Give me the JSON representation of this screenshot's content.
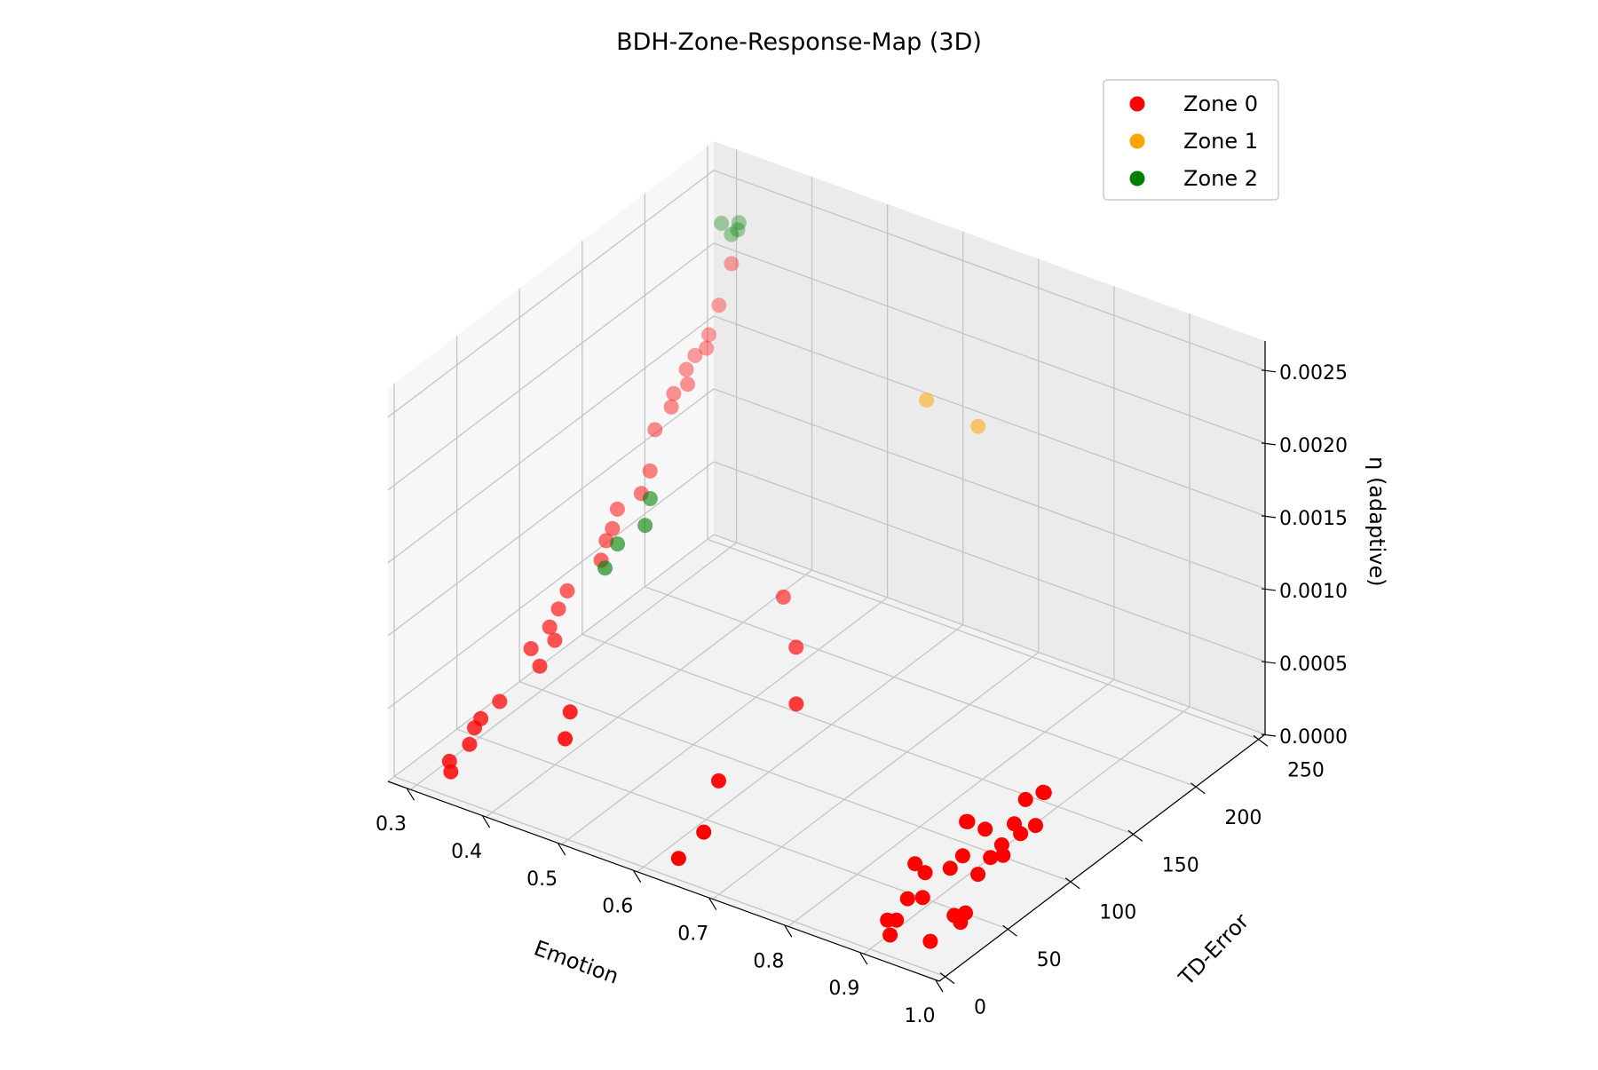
{
  "chart_data": {
    "type": "scatter",
    "title": "BDH-Zone-Response-Map (3D)",
    "xlabel": "Emotion",
    "ylabel": "TD-Error",
    "zlabel": "η (adaptive)",
    "xlim": [
      0.27,
      1.0
    ],
    "ylim": [
      -5,
      255
    ],
    "zlim": [
      0,
      0.0027
    ],
    "xticks": [
      "0.3",
      "0.4",
      "0.5",
      "0.6",
      "0.7",
      "0.8",
      "0.9",
      "1.0"
    ],
    "yticks": [
      "0",
      "50",
      "100",
      "150",
      "200",
      "250"
    ],
    "zticks": [
      "0.0000",
      "0.0005",
      "0.0010",
      "0.0015",
      "0.0020",
      "0.0025"
    ],
    "grid": true,
    "legend_position": "top-right",
    "series": [
      {
        "name": "Zone 0",
        "color": "#ff0000",
        "points": [
          [
            0.31,
            245,
            0.002
          ],
          [
            0.305,
            238,
            0.00175
          ],
          [
            0.305,
            230,
            0.0016
          ],
          [
            0.31,
            225,
            0.00155
          ],
          [
            0.3,
            222,
            0.0015
          ],
          [
            0.3,
            215,
            0.00145
          ],
          [
            0.31,
            210,
            0.0014
          ],
          [
            0.3,
            205,
            0.00135
          ],
          [
            0.305,
            200,
            0.0013
          ],
          [
            0.3,
            190,
            0.0012
          ],
          [
            0.31,
            180,
            0.001
          ],
          [
            0.315,
            170,
            0.00092
          ],
          [
            0.3,
            160,
            0.00085
          ],
          [
            0.31,
            150,
            0.0008
          ],
          [
            0.31,
            145,
            0.00075
          ],
          [
            0.32,
            135,
            0.0007
          ],
          [
            0.3,
            120,
            0.00055
          ],
          [
            0.305,
            110,
            0.0005
          ],
          [
            0.31,
            100,
            0.00045
          ],
          [
            0.325,
            95,
            0.00042
          ],
          [
            0.31,
            85,
            0.0004
          ],
          [
            0.33,
            80,
            0.00035
          ],
          [
            0.31,
            60,
            0.0002
          ],
          [
            0.31,
            45,
            0.00018
          ],
          [
            0.31,
            40,
            0.00015
          ],
          [
            0.32,
            30,
            0.00012
          ],
          [
            0.31,
            20,
            5e-05
          ],
          [
            0.32,
            15,
            3e-05
          ],
          [
            0.47,
            190,
            0.00037
          ],
          [
            0.52,
            170,
            0.00025
          ],
          [
            0.57,
            140,
            0.00015
          ],
          [
            0.6,
            60,
            0.0002
          ],
          [
            0.42,
            50,
            0.0004
          ],
          [
            0.43,
            40,
            0.0003
          ],
          [
            0.63,
            30,
            0.0001
          ],
          [
            0.63,
            10,
            5e-05
          ],
          [
            0.87,
            110,
            5e-05
          ],
          [
            0.87,
            95,
            0.0002
          ],
          [
            0.88,
            90,
            0.00025
          ],
          [
            0.89,
            80,
            0.0001
          ],
          [
            0.89,
            70,
            8e-05
          ],
          [
            0.86,
            60,
            0.00012
          ],
          [
            0.89,
            50,
            0.00018
          ],
          [
            0.9,
            42,
            8e-05
          ],
          [
            0.9,
            30,
            0.00015
          ],
          [
            0.89,
            20,
            5e-05
          ],
          [
            0.91,
            15,
            0.00012
          ],
          [
            0.91,
            10,
            5e-05
          ],
          [
            0.93,
            120,
            0.00035
          ],
          [
            0.94,
            115,
            0.0004
          ],
          [
            0.94,
            108,
            0.00022
          ],
          [
            0.94,
            100,
            0.00045
          ],
          [
            0.95,
            90,
            0.0003
          ],
          [
            0.95,
            85,
            0.0004
          ],
          [
            0.95,
            75,
            0.00032
          ],
          [
            0.96,
            70,
            0.0003
          ],
          [
            0.96,
            60,
            0.00035
          ],
          [
            0.96,
            50,
            0.0003
          ],
          [
            0.96,
            40,
            0.0001
          ],
          [
            0.97,
            30,
            0.00012
          ],
          [
            0.97,
            25,
            0.0002
          ],
          [
            0.95,
            18,
            3e-05
          ]
        ]
      },
      {
        "name": "Zone 1",
        "color": "#ffa500",
        "points": [
          [
            0.56,
            250,
            0.0015
          ],
          [
            0.62,
            255,
            0.0014
          ]
        ]
      },
      {
        "name": "Zone 2",
        "color": "#008000",
        "points": [
          [
            0.305,
            240,
            0.0023
          ],
          [
            0.31,
            245,
            0.0022
          ],
          [
            0.32,
            245,
            0.0023
          ],
          [
            0.31,
            250,
            0.0022
          ],
          [
            0.36,
            150,
            0.0011
          ],
          [
            0.37,
            140,
            0.001
          ],
          [
            0.35,
            130,
            0.0009
          ],
          [
            0.35,
            120,
            0.0008
          ]
        ]
      }
    ]
  }
}
